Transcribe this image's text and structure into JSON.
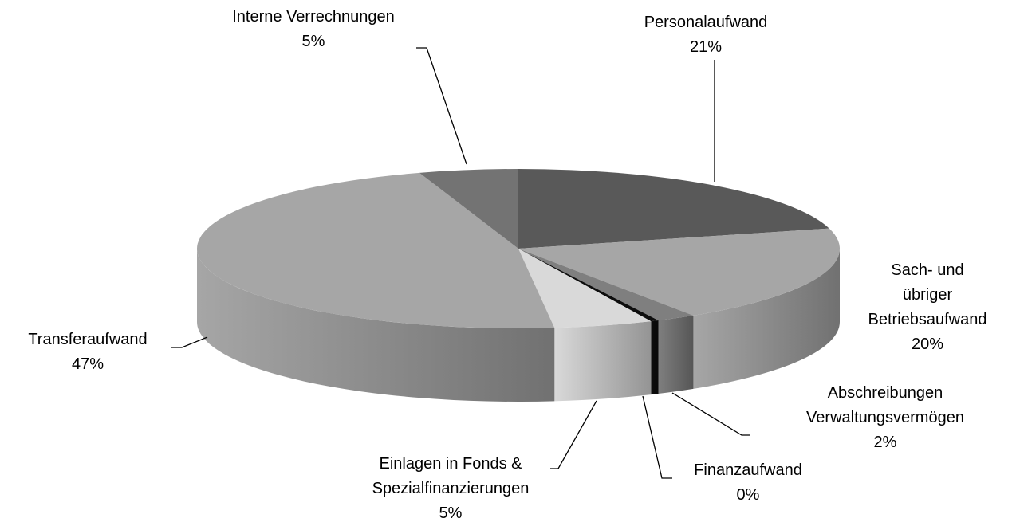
{
  "chart_data": {
    "type": "pie3d",
    "categories": [
      "Personalaufwand",
      "Sach- und übriger\nBetriebsaufwand",
      "Abschreibungen\nVerwaltungsvermögen",
      "Finanzaufwand",
      "Einlagen in Fonds &\nSpezialfinanzierungen",
      "Transferaufwand",
      "Interne Verrechnungen"
    ],
    "values": [
      21,
      20,
      2,
      0.4,
      5,
      47,
      5
    ],
    "value_labels": [
      "21%",
      "20%",
      "2%",
      "0%",
      "5%",
      "47%",
      "5%"
    ],
    "colors": [
      "#595959",
      "#a6a6a6",
      "#7f7f7f",
      "#0d0d0d",
      "#d9d9d9",
      "#a6a6a6",
      "#737373"
    ]
  }
}
